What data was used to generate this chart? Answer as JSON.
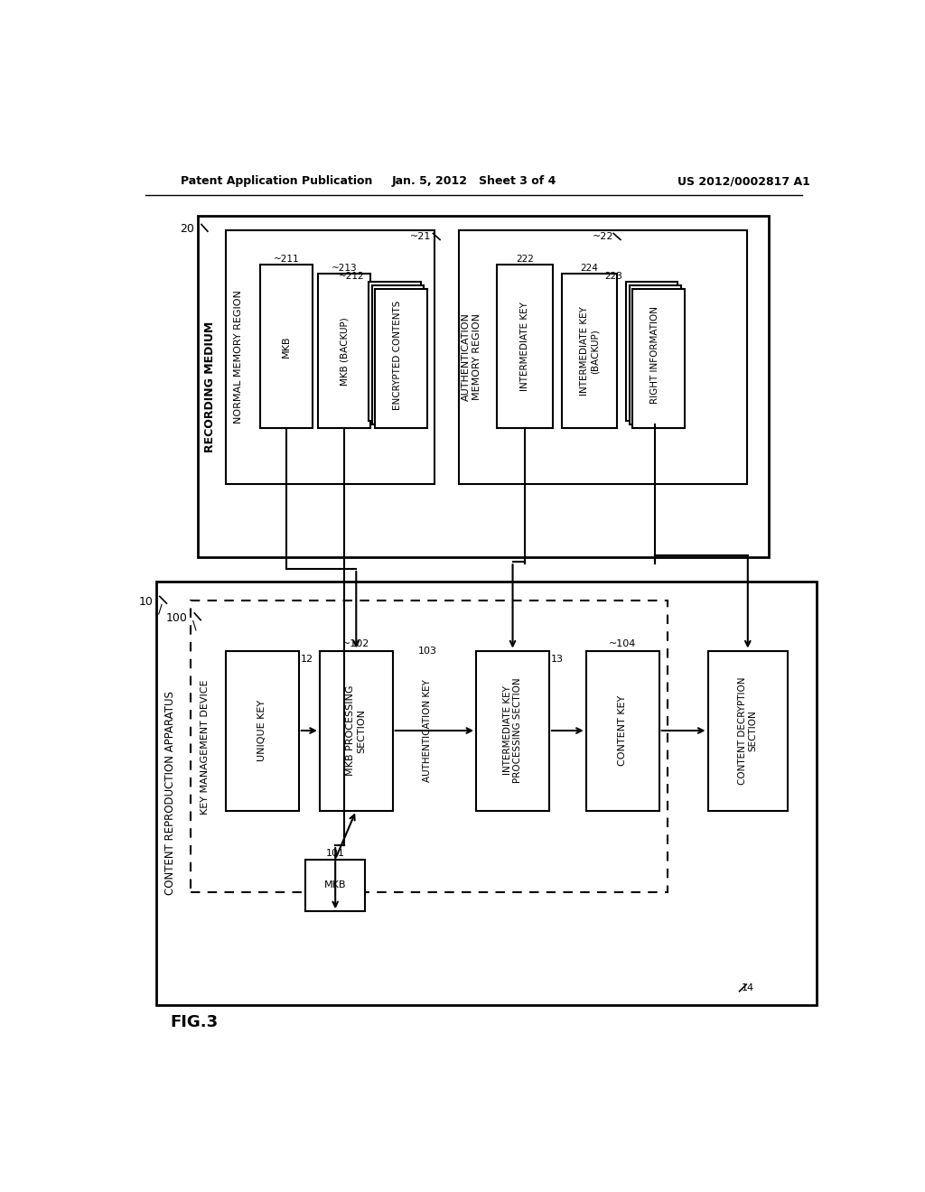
{
  "title_left": "Patent Application Publication",
  "title_center": "Jan. 5, 2012   Sheet 3 of 4",
  "title_right": "US 2012/0002817 A1",
  "fig_label": "FIG.3",
  "bg_color": "#ffffff",
  "box_color": "#000000",
  "text_color": "#000000"
}
